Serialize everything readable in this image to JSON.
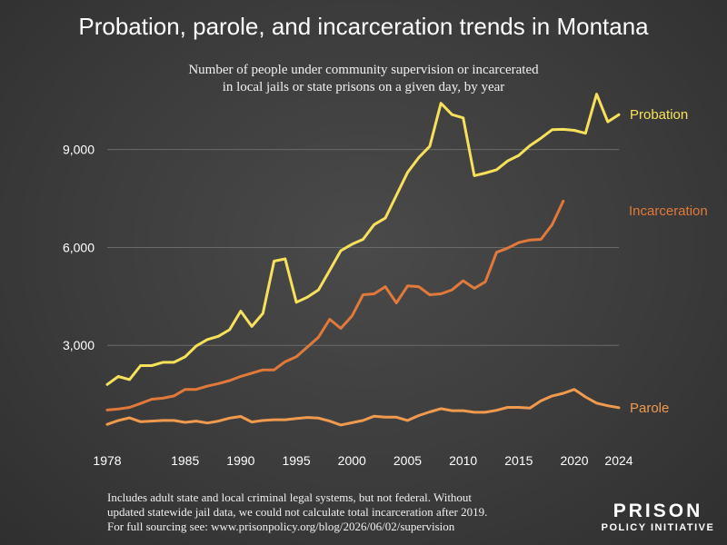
{
  "title": "Probation, parole, and incarceration trends in Montana",
  "subtitle_lines": [
    "Number of people under community supervision or incarcerated",
    "in local jails or state prisons on a given day, by year"
  ],
  "footnote_lines": [
    "Includes adult state and local criminal legal systems, but not federal. Without",
    "updated statewide jail data, we could not calculate total incarceration after 2019.",
    "For full sourcing see: www.prisonpolicy.org/blog/2026/06/02/supervision"
  ],
  "logo": {
    "line1": "PRISON",
    "line2": "POLICY INITIATIVE"
  },
  "chart_data": {
    "type": "line",
    "title": "Probation, parole, and incarceration trends in Montana",
    "xlabel": "",
    "ylabel": "",
    "xlim": [
      1978,
      2024
    ],
    "ylim": [
      0,
      10800
    ],
    "grid": true,
    "legend": "labels at line ends",
    "x_ticks": [
      1978,
      1985,
      1990,
      1995,
      2000,
      2005,
      2010,
      2015,
      2020,
      2024
    ],
    "y_ticks": [
      {
        "value": 3000,
        "label": "3,000"
      },
      {
        "value": 6000,
        "label": "6,000"
      },
      {
        "value": 9000,
        "label": "9,000"
      }
    ],
    "series": [
      {
        "name": "Probation",
        "color": "#f7e15a",
        "x": [
          1978,
          1979,
          1980,
          1981,
          1982,
          1983,
          1984,
          1985,
          1986,
          1987,
          1988,
          1989,
          1990,
          1991,
          1992,
          1993,
          1994,
          1995,
          1996,
          1997,
          1998,
          1999,
          2000,
          2001,
          2002,
          2003,
          2004,
          2005,
          2006,
          2007,
          2008,
          2009,
          2010,
          2011,
          2012,
          2013,
          2014,
          2015,
          2016,
          2017,
          2018,
          2019,
          2020,
          2021,
          2022,
          2023,
          2024
        ],
        "values": [
          1800,
          2050,
          1950,
          2380,
          2380,
          2480,
          2480,
          2650,
          2980,
          3180,
          3280,
          3480,
          4050,
          3580,
          3980,
          5580,
          5650,
          4320,
          4480,
          4700,
          5300,
          5900,
          6100,
          6250,
          6700,
          6900,
          7600,
          8300,
          8750,
          9100,
          10420,
          10070,
          9970,
          8200,
          8280,
          8380,
          8650,
          8820,
          9120,
          9350,
          9610,
          9620,
          9590,
          9500,
          10700,
          9850,
          10070
        ]
      },
      {
        "name": "Incarceration",
        "color": "#e0793a",
        "x": [
          1978,
          1979,
          1980,
          1981,
          1982,
          1983,
          1984,
          1985,
          1986,
          1987,
          1988,
          1989,
          1990,
          1991,
          1992,
          1993,
          1994,
          1995,
          1996,
          1997,
          1998,
          1999,
          2000,
          2001,
          2002,
          2003,
          2004,
          2005,
          2006,
          2007,
          2008,
          2009,
          2010,
          2011,
          2012,
          2013,
          2014,
          2015,
          2016,
          2017,
          2018,
          2019
        ],
        "values": [
          1020,
          1050,
          1100,
          1220,
          1350,
          1380,
          1450,
          1650,
          1650,
          1750,
          1830,
          1920,
          2050,
          2150,
          2250,
          2250,
          2500,
          2650,
          2950,
          3250,
          3800,
          3520,
          3900,
          4550,
          4580,
          4800,
          4300,
          4820,
          4800,
          4550,
          4580,
          4700,
          4980,
          4750,
          4950,
          5850,
          5980,
          6150,
          6230,
          6250,
          6700,
          7420
        ]
      },
      {
        "name": "Parole",
        "color": "#f09a4e",
        "x": [
          1978,
          1979,
          1980,
          1981,
          1982,
          1983,
          1984,
          1985,
          1986,
          1987,
          1988,
          1989,
          1990,
          1991,
          1992,
          1993,
          1994,
          1995,
          1996,
          1997,
          1998,
          1999,
          2000,
          2001,
          2002,
          2003,
          2004,
          2005,
          2006,
          2007,
          2008,
          2009,
          2010,
          2011,
          2012,
          2013,
          2014,
          2015,
          2016,
          2017,
          2018,
          2019,
          2020,
          2021,
          2022,
          2023,
          2024
        ],
        "values": [
          580,
          700,
          780,
          660,
          680,
          700,
          700,
          640,
          680,
          620,
          680,
          770,
          820,
          650,
          700,
          720,
          720,
          760,
          790,
          770,
          680,
          560,
          630,
          700,
          830,
          800,
          800,
          700,
          850,
          960,
          1060,
          1000,
          1000,
          950,
          950,
          1010,
          1100,
          1100,
          1080,
          1300,
          1450,
          1530,
          1650,
          1420,
          1230,
          1150,
          1090
        ]
      }
    ]
  }
}
